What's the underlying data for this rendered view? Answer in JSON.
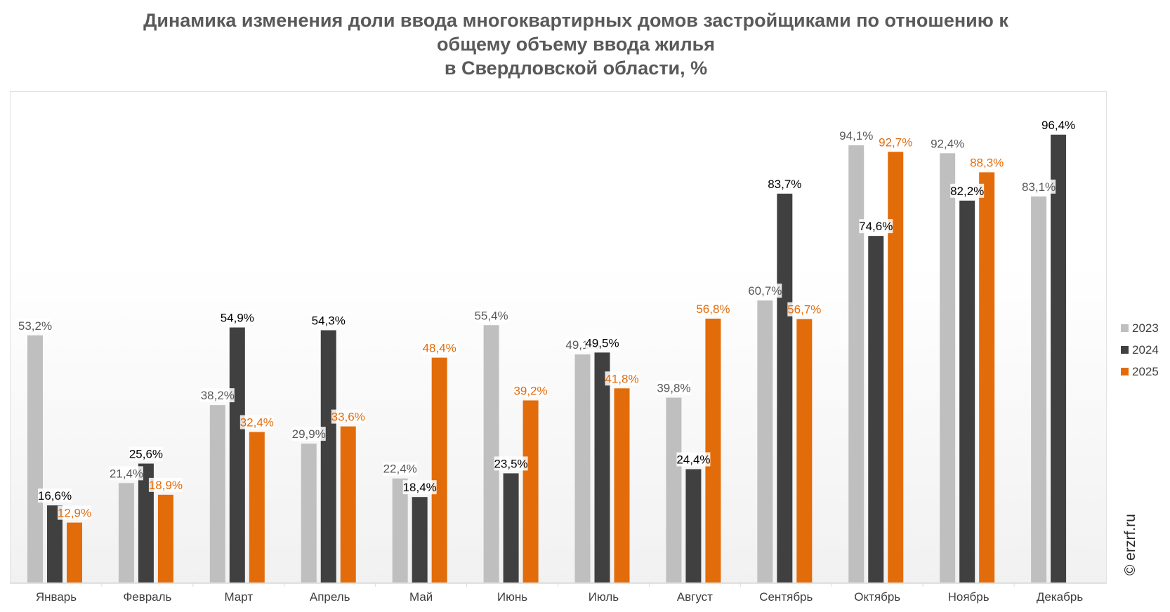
{
  "title_lines": [
    "Динамика изменения доли ввода многоквартирных домов застройщиками по отношению к",
    "общему объему ввода жилья",
    "в Свердловской области, %"
  ],
  "watermark": "© erzrf.ru",
  "chart_data": {
    "type": "bar",
    "title": "Динамика изменения доли ввода многоквартирных домов застройщиками по отношению к общему объему ввода жилья в Свердловской области, %",
    "xlabel": "",
    "ylabel": "",
    "ylim": [
      0,
      100
    ],
    "grid": false,
    "legend_position": "right",
    "categories": [
      "Январь",
      "Февраль",
      "Март",
      "Апрель",
      "Май",
      "Июнь",
      "Июль",
      "Август",
      "Сентябрь",
      "Октябрь",
      "Ноябрь",
      "Декабрь"
    ],
    "series": [
      {
        "name": "2023",
        "color": "#bfbfbf",
        "label_color": "#595959",
        "values": [
          53.2,
          21.4,
          38.2,
          29.9,
          22.4,
          55.4,
          49.1,
          39.8,
          60.7,
          94.1,
          92.4,
          83.1
        ],
        "labels": [
          "53,2%",
          "21,4%",
          "38,2%",
          "29,9%",
          "22,4%",
          "55,4%",
          "49,1%",
          "39,8%",
          "60,7%",
          "94,1%",
          "92,4%",
          "83,1%"
        ]
      },
      {
        "name": "2024",
        "color": "#404040",
        "label_color": "#000000",
        "values": [
          16.6,
          25.6,
          54.9,
          54.3,
          18.4,
          23.5,
          49.5,
          24.4,
          83.7,
          74.6,
          82.2,
          96.4
        ],
        "labels": [
          "16,6%",
          "25,6%",
          "54,9%",
          "54,3%",
          "18,4%",
          "23,5%",
          "49,5%",
          "24,4%",
          "83,7%",
          "74,6%",
          "82,2%",
          "96,4%"
        ]
      },
      {
        "name": "2025",
        "color": "#e36c0a",
        "label_color": "#e36c0a",
        "values": [
          12.9,
          18.9,
          32.4,
          33.6,
          48.4,
          39.2,
          41.8,
          56.8,
          56.7,
          92.7,
          88.3,
          null
        ],
        "labels": [
          "12,9%",
          "18,9%",
          "32,4%",
          "33,6%",
          "48,4%",
          "39,2%",
          "41,8%",
          "56,8%",
          "56,7%",
          "92,7%",
          "88,3%",
          ""
        ]
      }
    ]
  }
}
